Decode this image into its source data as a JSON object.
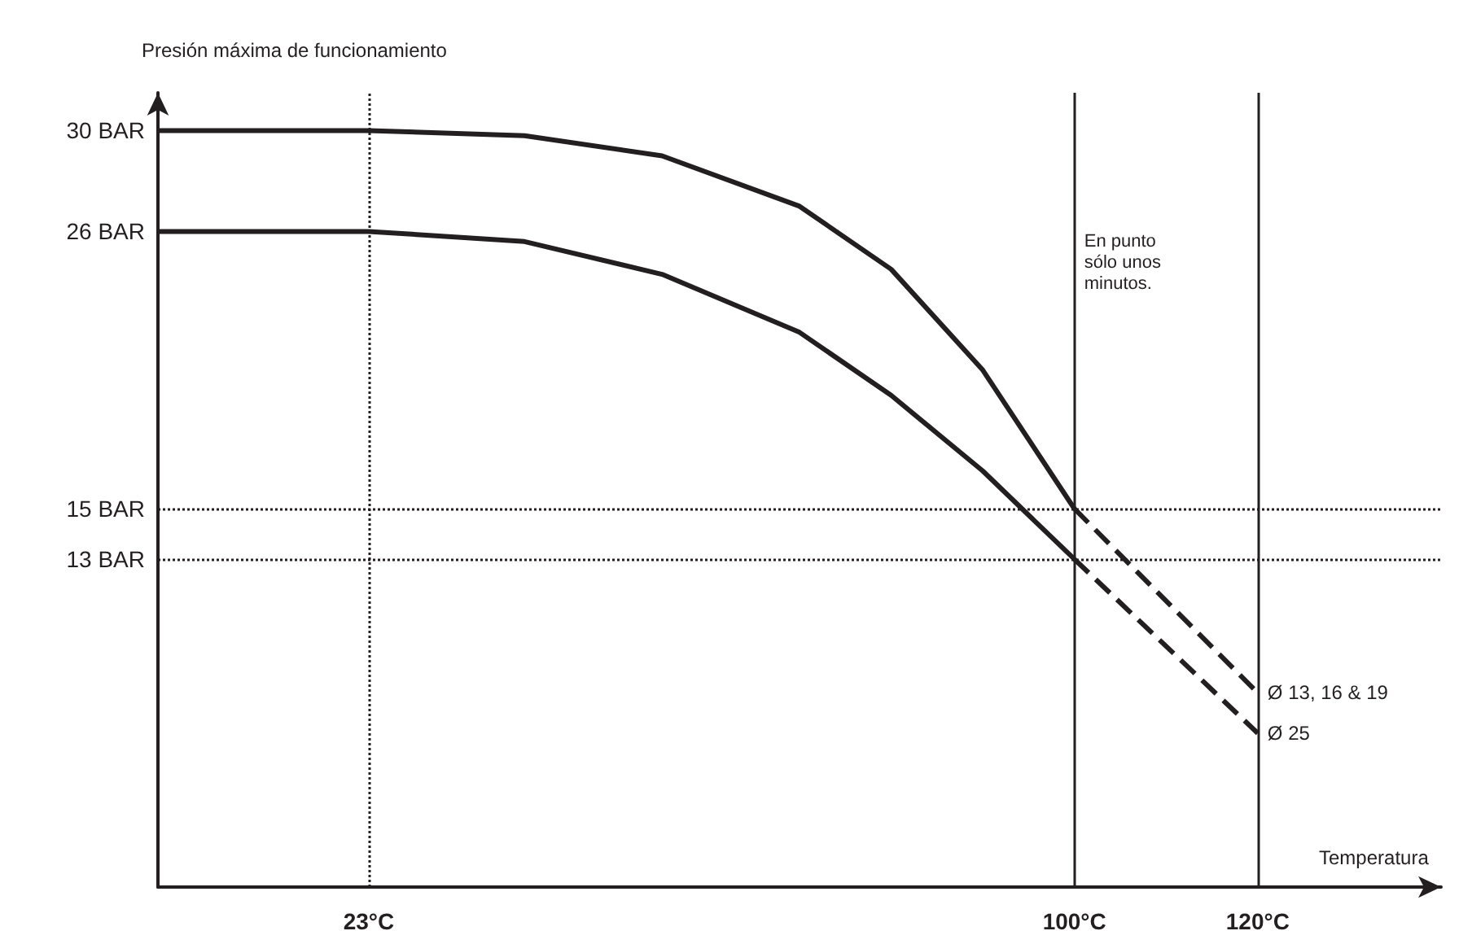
{
  "chart_data": {
    "type": "line",
    "ylabel": "Presión máxima de funcionamiento",
    "xlabel": "Temperatura",
    "xlim": [
      0,
      140
    ],
    "ylim": [
      0,
      31.5
    ],
    "xticks": [
      {
        "value": 23,
        "label": "23°C"
      },
      {
        "value": 100,
        "label": "100°C"
      },
      {
        "value": 120,
        "label": "120°C"
      }
    ],
    "yticks": [
      {
        "value": 13,
        "label": "13 BAR"
      },
      {
        "value": 15,
        "label": "15 BAR"
      },
      {
        "value": 26,
        "label": "26 BAR"
      },
      {
        "value": 30,
        "label": "30 BAR"
      }
    ],
    "grid": false,
    "legend": false,
    "marker": "none",
    "series": [
      {
        "color": "#231f20",
        "line_style": "solid",
        "x": [
          0,
          23,
          40,
          55,
          70,
          80,
          90,
          100
        ],
        "values": [
          30,
          30,
          29.8,
          29,
          27,
          24.5,
          20.5,
          15
        ]
      },
      {
        "color": "#231f20",
        "line_style": "solid",
        "x": [
          0,
          23,
          40,
          55,
          70,
          80,
          90,
          100
        ],
        "values": [
          26,
          26,
          25.6,
          24.3,
          22,
          19.5,
          16.5,
          13
        ]
      },
      {
        "name": "Ø 13, 16 & 19",
        "color": "#231f20",
        "line_style": "dashed",
        "x": [
          100,
          120
        ],
        "values": [
          15,
          7.7
        ]
      },
      {
        "name": "Ø 25",
        "color": "#231f20",
        "line_style": "dashed",
        "x": [
          100,
          120
        ],
        "values": [
          13,
          6.1
        ]
      }
    ],
    "ref_lines": [
      {
        "axis": "x",
        "value": 23,
        "line_style": "dotted",
        "color": "#231f20"
      },
      {
        "axis": "x",
        "value": 100,
        "line_style": "solid",
        "color": "#231f20"
      },
      {
        "axis": "x",
        "value": 120,
        "line_style": "solid",
        "color": "#231f20"
      },
      {
        "axis": "y",
        "value": 15,
        "line_style": "dotted",
        "color": "#231f20"
      },
      {
        "axis": "y",
        "value": 13,
        "line_style": "dotted",
        "color": "#231f20"
      }
    ],
    "annotations": [
      {
        "text": "En punto sólo unos minutos.",
        "x": 100,
        "y": 22
      }
    ]
  }
}
